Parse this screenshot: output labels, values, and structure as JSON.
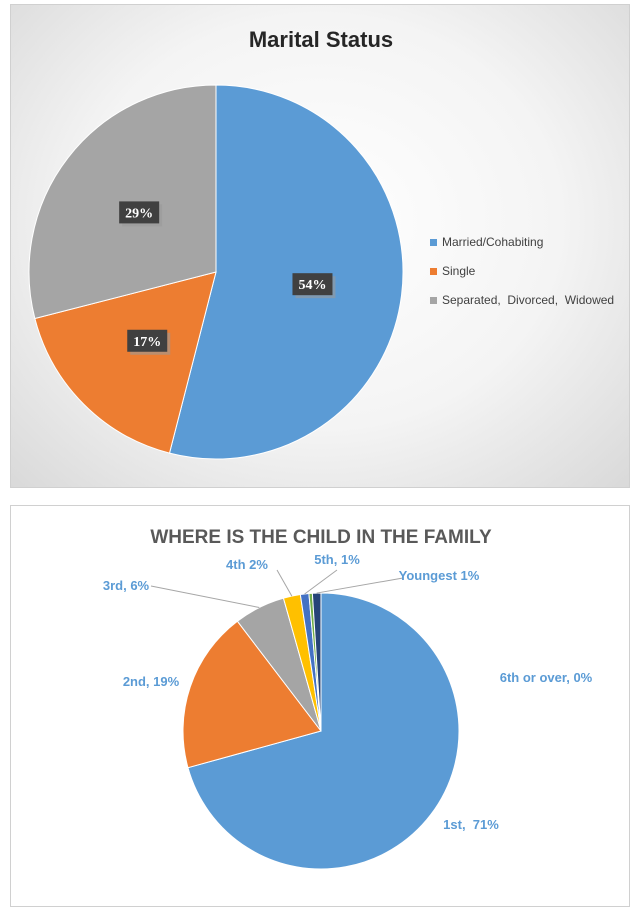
{
  "chart_data": [
    {
      "type": "pie",
      "title": "Marital Status",
      "slices": [
        {
          "label": "Married/Cohabiting",
          "value": 54,
          "display": "54%",
          "color": "#5b9bd5"
        },
        {
          "label": "Single",
          "value": 17,
          "display": "17%",
          "color": "#ed7d31"
        },
        {
          "label": "Separated,  Divorced,  Widowed",
          "value": 29,
          "display": "29%",
          "color": "#a5a5a5"
        }
      ],
      "legend": "right"
    },
    {
      "type": "pie",
      "title": "WHERE IS THE CHILD IN THE FAMILY",
      "slices": [
        {
          "label": "1st",
          "value": 71,
          "display": "1st,  71%",
          "color": "#5b9bd5"
        },
        {
          "label": "2nd",
          "value": 19,
          "display": "2nd, 19%",
          "color": "#ed7d31"
        },
        {
          "label": "3rd",
          "value": 6,
          "display": "3rd, 6%",
          "color": "#a5a5a5"
        },
        {
          "label": "4th",
          "value": 2,
          "display": "4th 2%",
          "color": "#ffc000"
        },
        {
          "label": "5th",
          "value": 1,
          "display": "5th, 1%",
          "color": "#4472c4"
        },
        {
          "label": "6th or over",
          "value": 0.4,
          "display": "6th or over, 0%",
          "color": "#70ad47"
        },
        {
          "label": "Youngest",
          "value": 1,
          "display": "Youngest 1%",
          "color": "#264478"
        }
      ]
    }
  ],
  "label_color": "#5b9bd5"
}
